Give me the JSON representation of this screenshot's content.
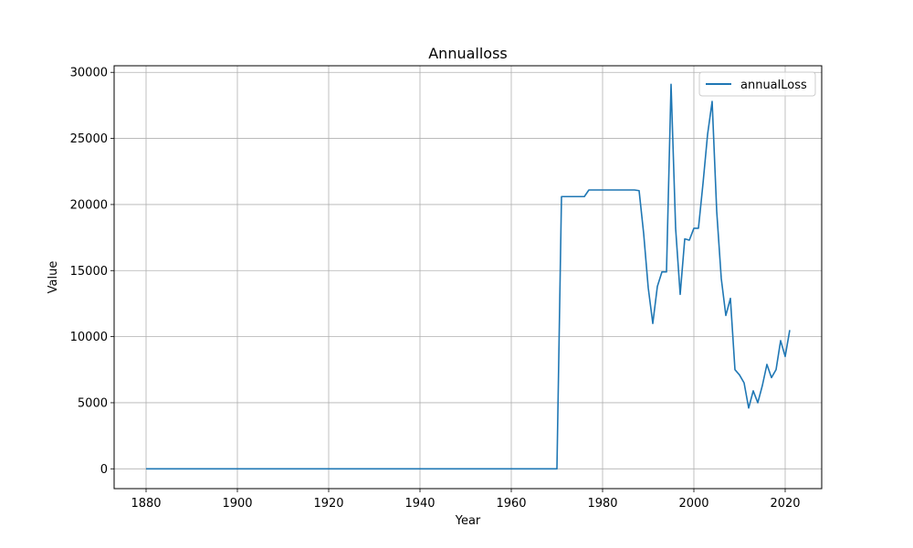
{
  "chart_data": {
    "type": "line",
    "title": "Annualloss",
    "xlabel": "Year",
    "ylabel": "Value",
    "xlim": [
      1873,
      2028
    ],
    "ylim": [
      -1500,
      30500
    ],
    "xticks": [
      1880,
      1900,
      1920,
      1940,
      1960,
      1980,
      2000,
      2020
    ],
    "yticks": [
      0,
      5000,
      10000,
      15000,
      20000,
      25000,
      30000
    ],
    "grid": true,
    "legend_position": "top-right",
    "series": [
      {
        "name": "annualLoss",
        "color": "#1f77b4",
        "points": [
          [
            1880,
            0
          ],
          [
            1970,
            0
          ],
          [
            1971,
            20600
          ],
          [
            1972,
            20600
          ],
          [
            1973,
            20600
          ],
          [
            1974,
            20600
          ],
          [
            1975,
            20600
          ],
          [
            1976,
            20600
          ],
          [
            1977,
            21100
          ],
          [
            1978,
            21100
          ],
          [
            1979,
            21100
          ],
          [
            1980,
            21100
          ],
          [
            1981,
            21100
          ],
          [
            1982,
            21100
          ],
          [
            1983,
            21100
          ],
          [
            1984,
            21100
          ],
          [
            1985,
            21100
          ],
          [
            1986,
            21100
          ],
          [
            1987,
            21100
          ],
          [
            1988,
            21050
          ],
          [
            1989,
            17800
          ],
          [
            1990,
            13700
          ],
          [
            1991,
            11000
          ],
          [
            1992,
            13800
          ],
          [
            1993,
            14900
          ],
          [
            1994,
            14900
          ],
          [
            1995,
            29100
          ],
          [
            1996,
            18200
          ],
          [
            1997,
            13200
          ],
          [
            1998,
            17400
          ],
          [
            1999,
            17300
          ],
          [
            2000,
            18200
          ],
          [
            2001,
            18200
          ],
          [
            2002,
            21600
          ],
          [
            2003,
            25300
          ],
          [
            2004,
            27800
          ],
          [
            2005,
            19500
          ],
          [
            2006,
            14400
          ],
          [
            2007,
            11600
          ],
          [
            2008,
            12900
          ],
          [
            2009,
            7500
          ],
          [
            2010,
            7100
          ],
          [
            2011,
            6500
          ],
          [
            2012,
            4600
          ],
          [
            2013,
            5900
          ],
          [
            2014,
            5000
          ],
          [
            2015,
            6300
          ],
          [
            2016,
            7900
          ],
          [
            2017,
            6900
          ],
          [
            2018,
            7500
          ],
          [
            2019,
            9700
          ],
          [
            2020,
            8500
          ],
          [
            2021,
            10500
          ]
        ]
      }
    ]
  }
}
